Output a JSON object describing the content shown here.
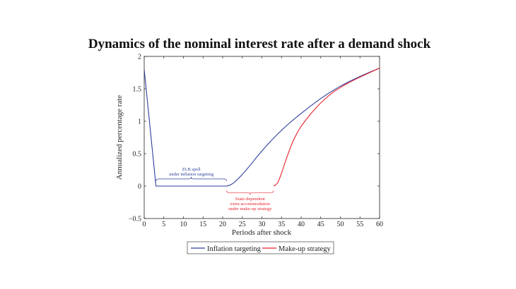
{
  "chart_data": {
    "type": "line",
    "title": "Dynamics of the nominal interest rate after a demand shock",
    "xlabel": "Periods after shock",
    "ylabel": "Annualized percentage rate",
    "xlim": [
      0,
      60
    ],
    "ylim": [
      -0.5,
      2
    ],
    "xticks": [
      "0",
      "5",
      "10",
      "15",
      "20",
      "25",
      "30",
      "35",
      "40",
      "45",
      "50",
      "55",
      "60"
    ],
    "yticks": [
      "−0.5",
      "0",
      "0.5",
      "1",
      "1.5",
      "2"
    ],
    "grid": false,
    "legend": "bottom",
    "series": [
      {
        "name": "Inflation targeting",
        "color": "#2e3f9e",
        "x": [
          0,
          1,
          2,
          3,
          10,
          20,
          21,
          22,
          23,
          25,
          27,
          29,
          31,
          33,
          35,
          37,
          40,
          45,
          50,
          55,
          60
        ],
        "y": [
          1.8,
          1.2,
          0.6,
          0.0,
          0.0,
          0.0,
          0.0,
          0.02,
          0.06,
          0.18,
          0.32,
          0.47,
          0.61,
          0.74,
          0.86,
          0.97,
          1.12,
          1.35,
          1.54,
          1.69,
          1.82
        ]
      },
      {
        "name": "Make-up strategy",
        "color": "#e8222a",
        "x": [
          33,
          34,
          35,
          36,
          37,
          38,
          39,
          40,
          42,
          44,
          46,
          48,
          50,
          52,
          55,
          60
        ],
        "y": [
          0.0,
          0.05,
          0.2,
          0.38,
          0.55,
          0.7,
          0.82,
          0.92,
          1.08,
          1.22,
          1.34,
          1.44,
          1.52,
          1.59,
          1.68,
          1.82
        ]
      }
    ],
    "annotations": [
      {
        "lines": [
          "ZLB spell",
          "under inflation targeting"
        ],
        "color": "#2e3f9e",
        "x_range": [
          3,
          21
        ]
      },
      {
        "lines": [
          "State-dependent",
          "extra accommodation",
          "under make-up strategy"
        ],
        "color": "#e8222a",
        "x_range": [
          21,
          33
        ]
      }
    ]
  }
}
